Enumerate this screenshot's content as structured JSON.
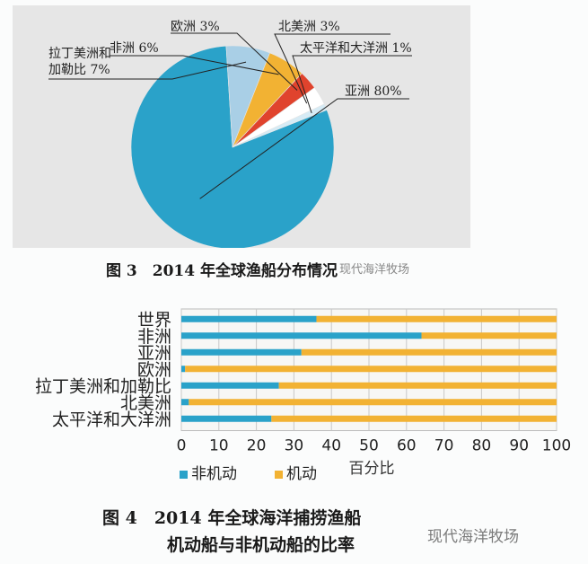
{
  "colors": {
    "asia": "#2aa2c9",
    "orange": "#f2b233",
    "red": "#e0432d",
    "lightblue": "#a9cfe6",
    "pale": "#d6ebf5",
    "white": "#ffffff"
  },
  "figure3": {
    "caption": "图 3　2014 年全球渔船分布情况",
    "watermark": "现代海洋牧场"
  },
  "figure4": {
    "caption_line1": "图 4　2014 年全球海洋捕捞渔船",
    "caption_line2": "机动船与非机动船的比率",
    "watermark": "现代海洋牧场"
  },
  "chart_data": [
    {
      "type": "pie",
      "slices": [
        {
          "label": "亚洲 80%",
          "value": 80,
          "color": "#2aa2c9"
        },
        {
          "label": "拉丁美洲和加勒比 7%",
          "value": 7,
          "color": "#a9cfe6"
        },
        {
          "label": "非洲 6%",
          "value": 6,
          "color": "#f2b233"
        },
        {
          "label": "欧洲 3%",
          "value": 3,
          "color": "#e0432d"
        },
        {
          "label": "北美洲 3%",
          "value": 3,
          "color": "#ffffff"
        },
        {
          "label": "太平洋和大洋洲 1%",
          "value": 1,
          "color": "#d6ebf5"
        }
      ]
    },
    {
      "type": "bar",
      "orientation": "horizontal",
      "stacked": true,
      "categories": [
        "世界",
        "非洲",
        "亚洲",
        "欧洲",
        "拉丁美洲和加勒比",
        "北美洲",
        "太平洋和大洋洲"
      ],
      "series": [
        {
          "name": "非机动",
          "color": "#2aa2c9",
          "values": [
            36,
            64,
            32,
            1,
            26,
            2,
            24
          ]
        },
        {
          "name": "机动",
          "color": "#f2b233",
          "values": [
            64,
            36,
            68,
            99,
            74,
            98,
            76
          ]
        }
      ],
      "xlabel": "百分比",
      "xlim": [
        0,
        100
      ],
      "xticks": [
        0,
        10,
        20,
        30,
        40,
        50,
        60,
        70,
        80,
        90,
        100
      ],
      "grid": true,
      "legend": "bottom"
    }
  ]
}
